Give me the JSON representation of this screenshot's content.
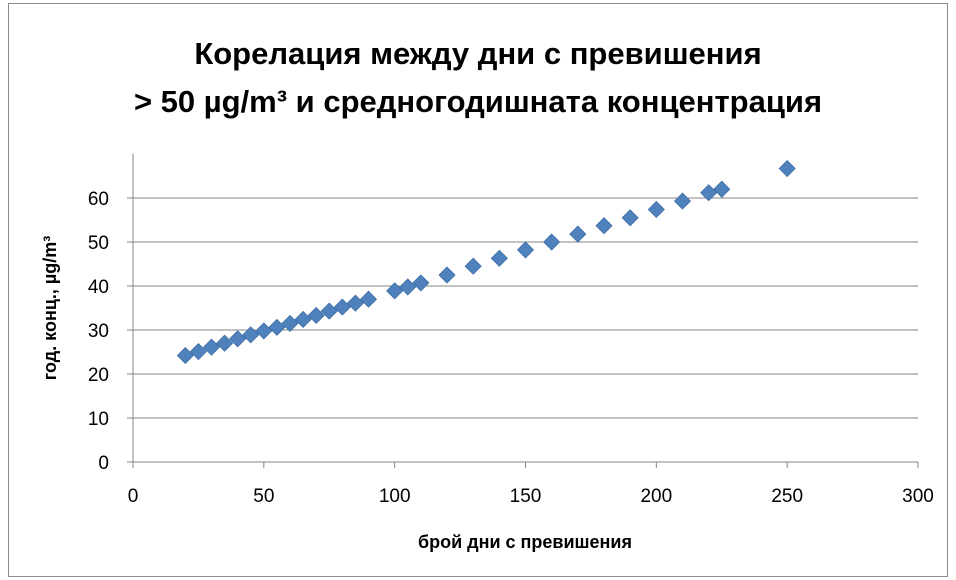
{
  "chart_data": {
    "type": "scatter",
    "title_lines": [
      "Корелация между дни с превишения",
      "> 50 µg/m³ и средногодишната концентрация"
    ],
    "xlabel": "брой дни с превишения",
    "ylabel": "год. конц., µg/m³",
    "xlim": [
      0,
      300
    ],
    "ylim": [
      0,
      70
    ],
    "x_ticks": [
      0,
      50,
      100,
      150,
      200,
      250,
      300
    ],
    "y_ticks": [
      0,
      10,
      20,
      30,
      40,
      50,
      60
    ],
    "grid": "horizontal",
    "legend": "none",
    "marker": "diamond",
    "marker_color": "#4f81bd",
    "series": [
      {
        "points": [
          [
            20,
            24.2
          ],
          [
            25,
            25.1
          ],
          [
            30,
            26.1
          ],
          [
            35,
            27.0
          ],
          [
            40,
            28.0
          ],
          [
            45,
            28.9
          ],
          [
            50,
            29.8
          ],
          [
            55,
            30.6
          ],
          [
            60,
            31.5
          ],
          [
            65,
            32.4
          ],
          [
            70,
            33.3
          ],
          [
            75,
            34.3
          ],
          [
            80,
            35.2
          ],
          [
            85,
            36.1
          ],
          [
            90,
            37.0
          ],
          [
            100,
            38.9
          ],
          [
            105,
            39.8
          ],
          [
            110,
            40.7
          ],
          [
            120,
            42.5
          ],
          [
            130,
            44.5
          ],
          [
            140,
            46.3
          ],
          [
            150,
            48.2
          ],
          [
            160,
            50.0
          ],
          [
            170,
            51.8
          ],
          [
            180,
            53.7
          ],
          [
            190,
            55.5
          ],
          [
            200,
            57.4
          ],
          [
            210,
            59.3
          ],
          [
            220,
            61.2
          ],
          [
            225,
            62.0
          ],
          [
            250,
            66.7
          ]
        ]
      }
    ]
  }
}
